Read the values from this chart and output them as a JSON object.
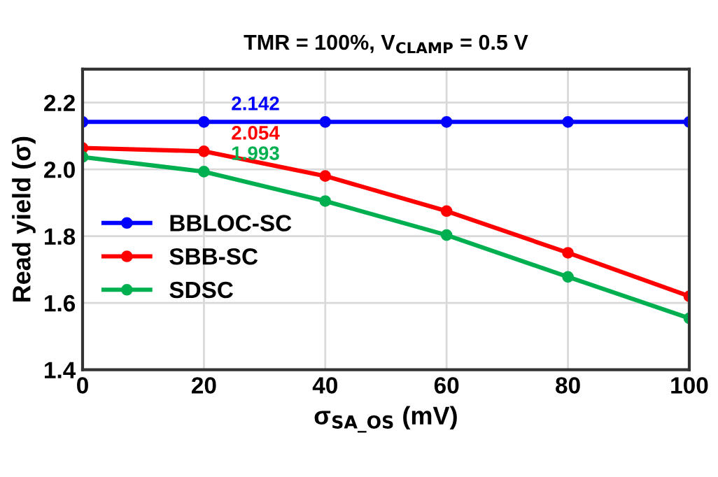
{
  "chart_data": {
    "type": "line",
    "title": "TMR = 100%, V$_{CLAMP}$ = 0.5 V",
    "xlabel": "σ$_{SA_OS}$ (mV)",
    "ylabel": "Read yield (σ)",
    "x": [
      0,
      20,
      40,
      60,
      80,
      100
    ],
    "series": [
      {
        "name": "BBLOC-SC",
        "color": "#0000ff",
        "values": [
          2.142,
          2.142,
          2.142,
          2.142,
          2.142,
          2.142
        ],
        "value_labels": [
          null,
          "2.142",
          null,
          null,
          null,
          null
        ]
      },
      {
        "name": "SBB-SC",
        "color": "#ff0000",
        "values": [
          2.064,
          2.054,
          1.98,
          1.875,
          1.75,
          1.62
        ],
        "value_labels": [
          null,
          "2.054",
          null,
          null,
          null,
          null
        ]
      },
      {
        "name": "SDSC",
        "color": "#00b050",
        "values": [
          2.037,
          1.993,
          1.905,
          1.803,
          1.678,
          1.554
        ],
        "value_labels": [
          null,
          "1.993",
          null,
          null,
          null,
          null
        ]
      }
    ],
    "xlim": [
      0,
      100
    ],
    "xticks": [
      0,
      20,
      40,
      60,
      80,
      100
    ],
    "ylim": [
      1.4,
      2.3
    ],
    "yticks": [
      {
        "value": 1.4,
        "label": "1.4"
      },
      {
        "value": 1.6,
        "label": "1.6"
      },
      {
        "value": 1.8,
        "label": "1.8"
      },
      {
        "value": 2.0,
        "label": "2.0"
      },
      {
        "value": 2.2,
        "label": "2.2"
      }
    ],
    "grid": true,
    "legend": "left",
    "marker": "circle",
    "line_style": "solid"
  }
}
